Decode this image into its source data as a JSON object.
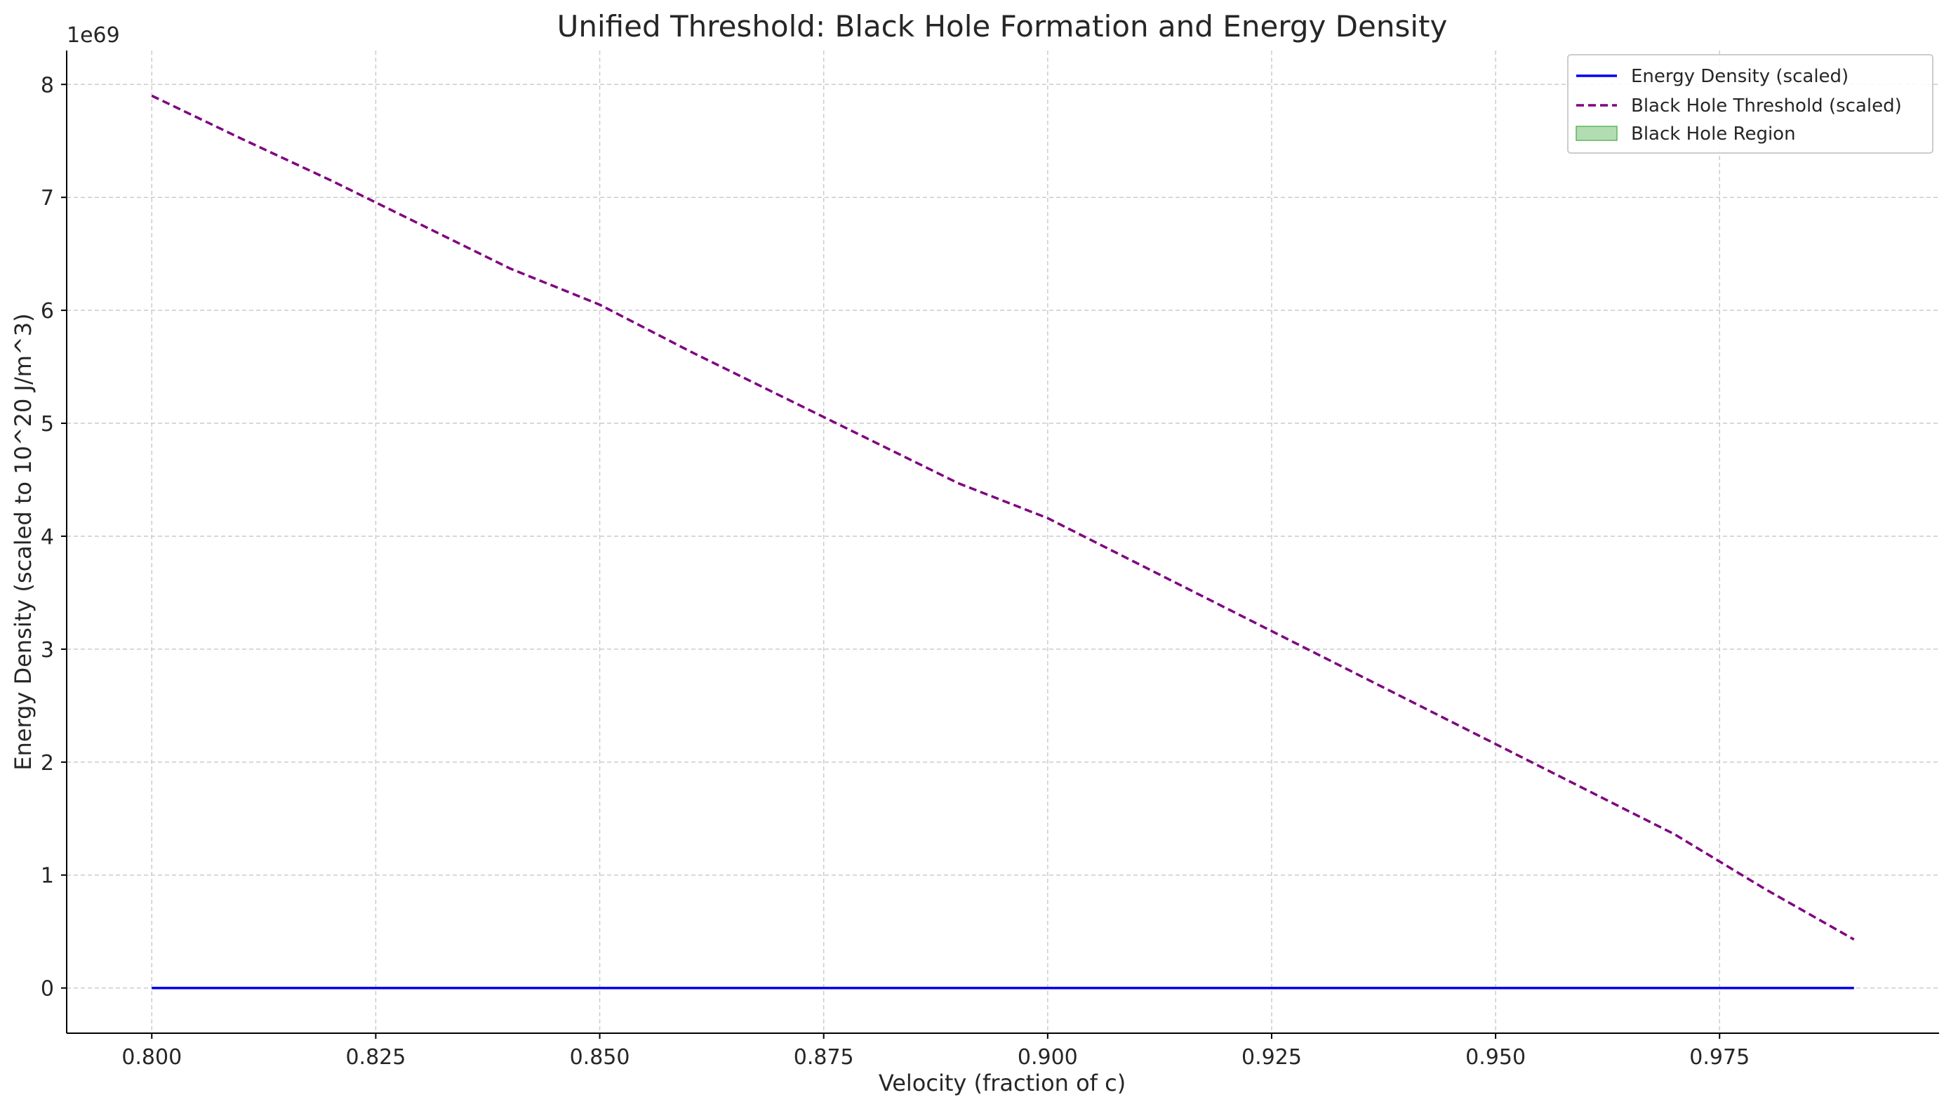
{
  "chart_data": {
    "type": "line",
    "title": "Unified Threshold: Black Hole Formation and Energy Density",
    "xlabel": "Velocity (fraction of c)",
    "ylabel": "Energy Density (scaled to 10^20 J/m^3)",
    "y_offset_label": "1e69",
    "xlim": [
      0.7905,
      0.9995
    ],
    "ylim": [
      -0.4,
      8.3
    ],
    "x_ticks": [
      0.8,
      0.825,
      0.85,
      0.875,
      0.9,
      0.925,
      0.95,
      0.975
    ],
    "x_tick_labels": [
      "0.800",
      "0.825",
      "0.850",
      "0.875",
      "0.900",
      "0.925",
      "0.950",
      "0.975"
    ],
    "y_ticks": [
      0,
      1,
      2,
      3,
      4,
      5,
      6,
      7,
      8
    ],
    "y_tick_labels": [
      "0",
      "1",
      "2",
      "3",
      "4",
      "5",
      "6",
      "7",
      "8"
    ],
    "grid": true,
    "legend_position": "top-right",
    "legend": [
      {
        "label": "Energy Density (scaled)",
        "kind": "line",
        "color": "#0000ee",
        "dash": "solid"
      },
      {
        "label": "Black Hole Threshold (scaled)",
        "kind": "line",
        "color": "#800080",
        "dash": "dashed"
      },
      {
        "label": "Black Hole Region",
        "kind": "patch",
        "color": "#7fc77f"
      }
    ],
    "series": [
      {
        "name": "Energy Density (scaled)",
        "color": "#0000ee",
        "dash": "solid",
        "x": [
          0.8,
          0.81,
          0.82,
          0.83,
          0.84,
          0.85,
          0.86,
          0.87,
          0.88,
          0.89,
          0.9,
          0.91,
          0.92,
          0.93,
          0.94,
          0.95,
          0.96,
          0.97,
          0.98,
          0.99
        ],
        "y": [
          0,
          0,
          0,
          0,
          0,
          0,
          0,
          0,
          0,
          0,
          0,
          0,
          0,
          0,
          0,
          0,
          0,
          0,
          0,
          0
        ]
      },
      {
        "name": "Black Hole Threshold (scaled)",
        "color": "#800080",
        "dash": "dashed",
        "x": [
          0.8,
          0.81,
          0.82,
          0.83,
          0.84,
          0.85,
          0.86,
          0.87,
          0.88,
          0.89,
          0.9,
          0.91,
          0.92,
          0.93,
          0.94,
          0.95,
          0.96,
          0.97,
          0.98,
          0.99
        ],
        "y": [
          7.9,
          7.52,
          7.15,
          6.76,
          6.37,
          6.05,
          5.64,
          5.25,
          4.86,
          4.47,
          4.16,
          3.76,
          3.36,
          2.96,
          2.56,
          2.16,
          1.76,
          1.36,
          0.88,
          0.43
        ]
      }
    ]
  }
}
